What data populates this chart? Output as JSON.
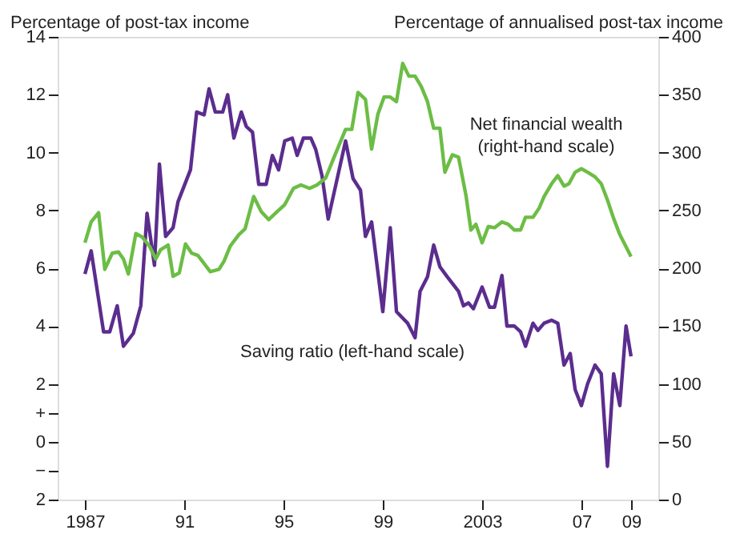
{
  "chart_data": {
    "type": "line",
    "ylabel": "Percentage of post-tax income",
    "y2label": "Percentage of annualised post-tax income",
    "xlim": [
      1985.9,
      2010.1
    ],
    "xticks": [
      {
        "value": 1987,
        "label": "1987"
      },
      {
        "value": 1991,
        "label": "91"
      },
      {
        "value": 1995,
        "label": "95"
      },
      {
        "value": 1999,
        "label": "99"
      },
      {
        "value": 2003,
        "label": "2003"
      },
      {
        "value": 2007,
        "label": "07"
      },
      {
        "value": 2009,
        "label": "09"
      }
    ],
    "ylim": [
      -2,
      14
    ],
    "yticks": [
      14,
      12,
      10,
      8,
      6,
      4,
      2,
      {
        "value": 1,
        "label": "+"
      },
      0,
      {
        "value": -1,
        "label": "−"
      },
      {
        "value": -2,
        "label": "2"
      }
    ],
    "y2lim": [
      0,
      400
    ],
    "y2ticks": [
      0,
      50,
      100,
      150,
      200,
      250,
      300,
      350,
      400
    ],
    "grid": false,
    "line_style": "solid",
    "marker": "none",
    "series": [
      {
        "name": "Saving ratio (left-hand scale)",
        "color": "#5b2d8e",
        "axis": "y",
        "x": [
          1987.0,
          1987.25,
          1987.75,
          1988.0,
          1988.3,
          1988.55,
          1988.95,
          1989.25,
          1989.5,
          1989.8,
          1990.0,
          1990.25,
          1990.55,
          1990.75,
          1991.25,
          1991.5,
          1991.8,
          1992.0,
          1992.25,
          1992.55,
          1992.75,
          1993.0,
          1993.3,
          1993.5,
          1993.75,
          1994.0,
          1994.3,
          1994.55,
          1994.8,
          1995.05,
          1995.35,
          1995.55,
          1995.8,
          1996.1,
          1996.3,
          1996.55,
          1996.8,
          1997.5,
          1997.8,
          1998.1,
          1998.3,
          1998.55,
          1999.0,
          1999.3,
          1999.55,
          2000.0,
          2000.3,
          2000.5,
          2000.8,
          2001.05,
          2001.3,
          2001.6,
          2002.05,
          2002.25,
          2002.45,
          2002.65,
          2003.0,
          2003.3,
          2003.5,
          2003.8,
          2004.0,
          2004.3,
          2004.55,
          2004.75,
          2005.05,
          2005.25,
          2005.5,
          2005.8,
          2006.05,
          2006.3,
          2006.55,
          2006.75,
          2007.0,
          2007.25,
          2007.55,
          2007.8,
          2008.05,
          2008.3,
          2008.55,
          2008.8,
          2009.0
        ],
        "values": [
          5.8,
          6.6,
          3.8,
          3.8,
          4.7,
          3.3,
          3.75,
          4.7,
          7.9,
          6.1,
          9.6,
          7.1,
          7.4,
          8.3,
          9.4,
          11.4,
          11.3,
          12.2,
          11.4,
          11.4,
          12.0,
          10.5,
          11.4,
          10.9,
          10.7,
          8.9,
          8.9,
          9.9,
          9.4,
          10.4,
          10.5,
          9.9,
          10.5,
          10.5,
          10.1,
          9.2,
          7.7,
          10.4,
          9.1,
          8.7,
          7.1,
          7.6,
          4.5,
          7.4,
          4.5,
          4.1,
          3.6,
          5.2,
          5.7,
          6.8,
          6.05,
          5.7,
          5.2,
          4.7,
          4.8,
          4.6,
          5.35,
          4.65,
          4.65,
          5.75,
          4.0,
          4.0,
          3.8,
          3.3,
          4.1,
          3.85,
          4.1,
          4.2,
          4.1,
          2.65,
          3.05,
          1.8,
          1.25,
          2.0,
          2.65,
          2.35,
          -0.85,
          2.35,
          1.25,
          4.0,
          2.95
        ]
      },
      {
        "name": "Net financial wealth (right-hand scale)",
        "color": "#6cbd45",
        "axis": "y2",
        "x": [
          1987.0,
          1987.25,
          1987.55,
          1987.8,
          1988.1,
          1988.35,
          1988.55,
          1988.75,
          1989.05,
          1989.3,
          1989.6,
          1989.85,
          1990.05,
          1990.35,
          1990.55,
          1990.8,
          1991.05,
          1991.3,
          1991.55,
          1992.05,
          1992.4,
          1992.6,
          1992.85,
          1993.2,
          1993.45,
          1993.8,
          1994.1,
          1994.4,
          1994.75,
          1995.05,
          1995.4,
          1995.7,
          1996.05,
          1996.35,
          1996.7,
          1997.0,
          1997.5,
          1997.75,
          1998.0,
          1998.3,
          1998.55,
          1998.8,
          1999.05,
          1999.3,
          1999.55,
          1999.8,
          2000.05,
          2000.3,
          2000.55,
          2000.8,
          2001.05,
          2001.3,
          2001.5,
          2001.8,
          2002.05,
          2002.35,
          2002.55,
          2002.75,
          2003.0,
          2003.25,
          2003.5,
          2003.8,
          2004.05,
          2004.3,
          2004.55,
          2004.75,
          2005.05,
          2005.3,
          2005.5,
          2005.8,
          2006.05,
          2006.3,
          2006.5,
          2006.75,
          2007.0,
          2007.25,
          2007.55,
          2007.8,
          2008.05,
          2008.3,
          2008.55,
          2009.0
        ],
        "values": [
          222,
          240,
          248,
          199,
          213,
          214,
          208,
          195,
          230,
          227,
          219,
          208,
          216,
          220,
          193,
          196,
          221,
          213,
          211,
          197,
          199,
          206,
          219,
          229,
          234,
          262,
          249,
          242,
          249,
          255,
          269,
          272,
          269,
          272,
          278,
          294,
          320,
          320,
          352,
          346,
          303,
          333,
          348,
          348,
          344,
          377,
          366,
          366,
          357,
          344,
          321,
          321,
          283,
          298,
          296,
          263,
          233,
          238,
          222,
          236,
          235,
          240,
          238,
          233,
          233,
          244,
          244,
          252,
          262,
          273,
          280,
          271,
          273,
          283,
          286,
          283,
          279,
          273,
          259,
          243,
          229,
          210
        ]
      }
    ]
  }
}
